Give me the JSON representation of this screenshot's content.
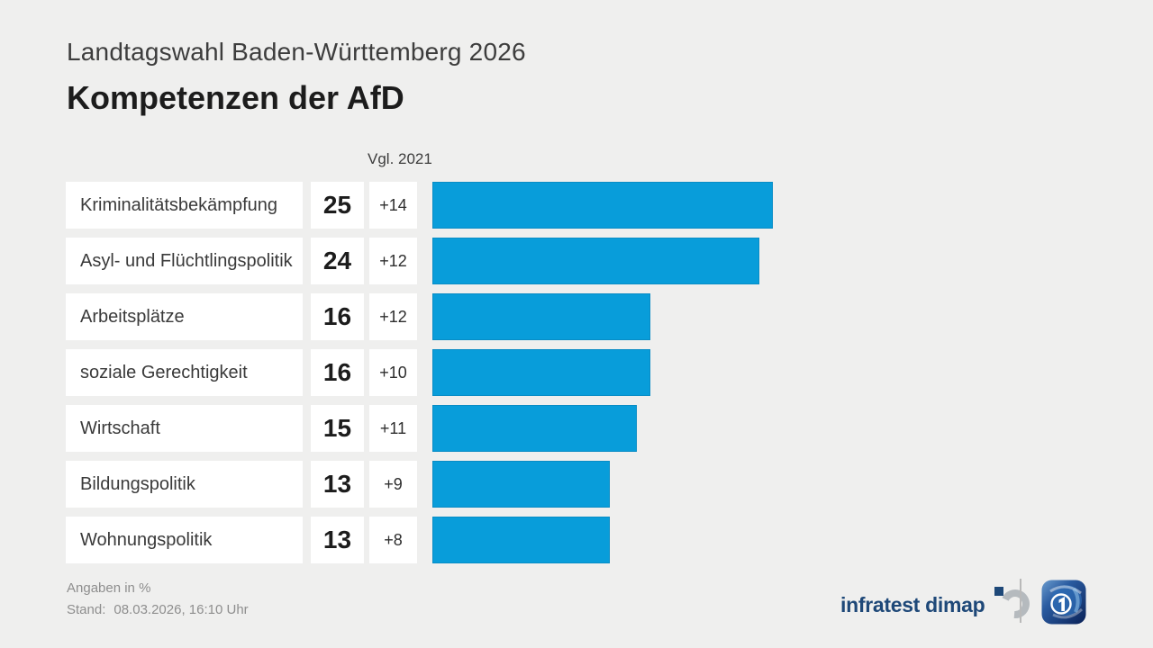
{
  "header": {
    "subtitle": "Landtagswahl Baden-Württemberg 2026",
    "title": "Kompetenzen der AfD"
  },
  "chart_data": {
    "type": "bar",
    "orientation": "horizontal",
    "title": "Kompetenzen der AfD",
    "subtitle": "Landtagswahl Baden-Württemberg 2026",
    "comparison_label": "Vgl. 2021",
    "unit": "%",
    "xlim": [
      0,
      25
    ],
    "bar_color": "#089dda",
    "categories": [
      "Kriminalitätsbekämpfung",
      "Asyl- und Flüchtlingspolitik",
      "Arbeitsplätze",
      "soziale Gerechtigkeit",
      "Wirtschaft",
      "Bildungspolitik",
      "Wohnungspolitik"
    ],
    "values": [
      25,
      24,
      16,
      16,
      15,
      13,
      13
    ],
    "diffs_vs_2021": [
      "+14",
      "+12",
      "+12",
      "+10",
      "+11",
      "+9",
      "+8"
    ]
  },
  "footer": {
    "note": "Angaben in %",
    "stand_label": "Stand:",
    "stand_value": "08.03.2026, 16:10 Uhr",
    "source": "infratest dimap"
  }
}
